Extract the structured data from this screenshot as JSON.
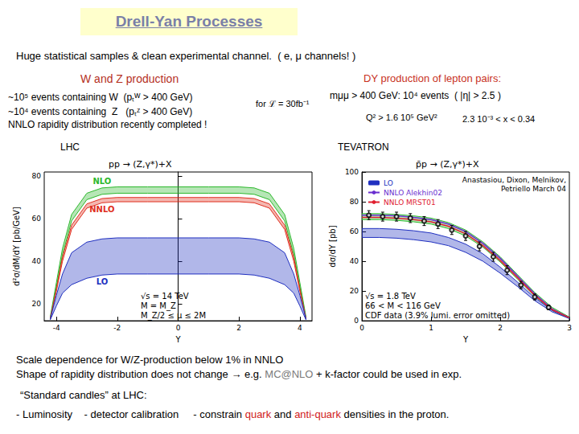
{
  "slide": {
    "title": "Drell-Yan Processes",
    "intro": "Huge statistical samples & clean experimental channel.",
    "intro_note": "( e, μ channels! )",
    "wz_heading": "W and Z production",
    "wz_lines": [
      "~10⁵ events containing W  (pₜᵂ > 400 GeV)",
      "~10⁴ events containing  Z   (pₜᶻ > 400 GeV)"
    ],
    "luminosity": "for ℒ = 30fb⁻¹",
    "nnlo_note": "NNLO rapidity distribution recently completed !",
    "dy_heading": "DY production of lepton pairs:",
    "dy_line": "mμμ > 400 GeV: 10⁴ events  ( |η| > 2.5 )",
    "dy_kinematics": [
      "Q² > 1.6 10⁵ GeV²",
      "2.3 10⁻³ < x < 0.34"
    ],
    "left_label": "LHC",
    "right_label": "TEVATRON",
    "notes": [
      [
        {
          "text": "Scale dependence for W/Z-production below 1% in NNLO"
        }
      ],
      [
        {
          "text": "Shape of rapidity distribution does not change → e.g. "
        },
        {
          "text": "MC@NLO",
          "color": "#7a7a7a"
        },
        {
          "text": " + k-factor could be used in exp."
        }
      ]
    ],
    "candles_heading": "“Standard candles” at LHC:",
    "candles": [
      {
        "text": "- Luminosity    - detector calibration     - constrain "
      },
      {
        "text": "quark",
        "color": "#d02020"
      },
      {
        "text": " and "
      },
      {
        "text": "anti-quark",
        "color": "#d02020"
      },
      {
        "text": " densities in the proton."
      }
    ]
  },
  "chart_data": [
    {
      "type": "line",
      "title": "pp → (Z,γ*)+X",
      "x_label": "Y",
      "y_label": "d²σ/dM/dY [pb/GeV]",
      "x": [
        -4.2,
        -4,
        -3.8,
        -3.5,
        -3,
        -2.5,
        -2,
        -1,
        0,
        1,
        2,
        2.5,
        3,
        3.5,
        3.8,
        4,
        4.2
      ],
      "xlim": [
        -4.4,
        4.4
      ],
      "xticks": [
        -4,
        -2,
        0,
        2,
        4
      ],
      "ylim": [
        12,
        82
      ],
      "yticks": [
        20,
        40,
        60,
        80
      ],
      "grid": false,
      "bands": [
        {
          "name": "NLO",
          "color": "#2db82d",
          "upper": [
            14,
            30,
            46,
            62,
            72,
            74.5,
            75,
            75,
            75,
            75,
            75,
            74.5,
            72,
            62,
            46,
            30,
            14
          ],
          "lower": [
            13,
            28,
            43,
            59,
            69,
            71.5,
            72,
            72,
            72,
            72,
            72,
            71.5,
            69,
            59,
            43,
            28,
            13
          ]
        },
        {
          "name": "NNLO",
          "color": "#e03020",
          "upper": [
            13,
            27,
            42,
            57,
            67,
            69.5,
            70,
            70,
            70,
            70,
            70,
            69.5,
            67,
            57,
            42,
            27,
            13
          ],
          "lower": [
            13,
            26,
            40,
            55,
            65,
            67.5,
            68,
            68,
            68,
            68,
            68,
            67.5,
            65,
            55,
            40,
            26,
            13
          ]
        },
        {
          "name": "LO",
          "color": "#2030c0",
          "upper": [
            13,
            24,
            34,
            44,
            49,
            50.5,
            51,
            51,
            51,
            51,
            51,
            50.5,
            49,
            44,
            34,
            24,
            13
          ],
          "lower": [
            12.5,
            19,
            25,
            29,
            32,
            33.5,
            34,
            34,
            34,
            34,
            34,
            33.5,
            32,
            29,
            25,
            19,
            12.5
          ]
        }
      ],
      "annotations": [
        "√s = 14 TeV",
        "M = M_Z",
        "M_Z/2 ≤ μ ≤ 2M"
      ]
    },
    {
      "type": "line",
      "title": "p̄p → (Z,γ*)+X",
      "x_label": "Y",
      "y_label": "dσ/dY [pb]",
      "x": [
        0,
        0.25,
        0.5,
        0.75,
        1,
        1.25,
        1.5,
        1.75,
        2,
        2.25,
        2.5,
        2.75,
        3
      ],
      "xlim": [
        0,
        3
      ],
      "xticks": [
        0,
        1,
        2,
        3
      ],
      "ylim": [
        0,
        100
      ],
      "yticks": [
        0,
        20,
        40,
        60,
        80,
        100
      ],
      "grid": false,
      "legend": "upper left",
      "bands": [
        {
          "color": "#2db82d",
          "upper": [
            72,
            72,
            71.5,
            70.5,
            69,
            66,
            61,
            53,
            43,
            31,
            19,
            9,
            2.5
          ],
          "lower": [
            68,
            68,
            67.5,
            66.5,
            65,
            62,
            57,
            49.5,
            39.5,
            28,
            16.5,
            7,
            1.5
          ]
        },
        {
          "name": "LO",
          "color": "#2030c0",
          "upper": [
            62,
            62,
            61.5,
            60.5,
            59,
            56,
            51.5,
            45,
            36,
            26,
            15.5,
            7,
            2
          ],
          "lower": [
            56,
            56,
            55.5,
            54.5,
            53,
            50.5,
            46,
            40,
            32,
            23,
            13.5,
            6,
            1.5
          ]
        }
      ],
      "series": [
        {
          "name": "NNLO Alekhin02",
          "color": "#6a2fd0",
          "values": [
            71,
            71,
            70.5,
            69.5,
            68,
            65,
            60,
            52,
            42,
            30,
            18,
            8,
            2
          ]
        },
        {
          "name": "NNLO MRST01",
          "color": "#e02030",
          "values": [
            69.5,
            69.5,
            69,
            68,
            66.5,
            63.5,
            58.5,
            50.5,
            40.5,
            29,
            17,
            7.5,
            2
          ]
        }
      ],
      "points": {
        "x": [
          0.1,
          0.3,
          0.5,
          0.7,
          0.9,
          1.1,
          1.3,
          1.5,
          1.7,
          1.9,
          2.1,
          2.3,
          2.5,
          2.7
        ],
        "values": [
          71,
          70,
          70,
          69,
          67,
          65,
          61,
          57,
          50,
          43,
          34,
          24,
          16,
          9
        ],
        "errors": [
          3,
          3,
          3,
          3,
          3,
          3,
          3,
          3,
          3,
          3,
          3,
          2.5,
          2,
          1.5
        ],
        "color": "#000000",
        "marker": "circle"
      },
      "annotations": [
        "√s = 1.8 TeV",
        "66 < M < 116 GeV",
        "CDF data (3.9% lumi. error omitted)"
      ],
      "credit": [
        "Anastasiou, Dixon, Melnikov,",
        "Petriello March 04"
      ]
    }
  ]
}
